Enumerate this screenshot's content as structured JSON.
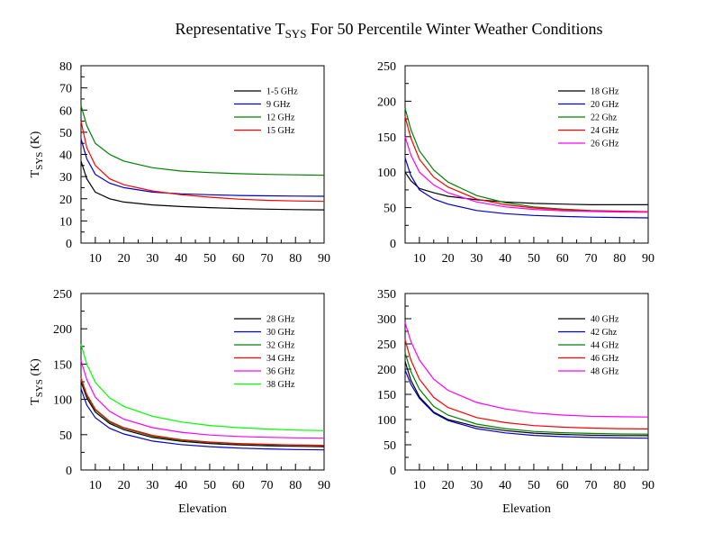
{
  "title": {
    "pre": "Representative T",
    "sub": "SYS",
    "post": " For 50 Percentile Winter Weather Conditions"
  },
  "chart_data": [
    {
      "type": "line",
      "ylim": [
        0,
        80
      ],
      "xlim": [
        5,
        90
      ],
      "yticks": [
        0,
        10,
        20,
        30,
        40,
        50,
        60,
        70,
        80
      ],
      "xticks": [
        10,
        20,
        30,
        40,
        50,
        60,
        70,
        80,
        90
      ],
      "ylabel_main": "T",
      "ylabel_sub": "SYS",
      "ylabel_post": " (K)",
      "xlabel": "",
      "legend_position": "top-right",
      "series": [
        {
          "name": "1-5 GHz",
          "color": "#000000",
          "x": [
            5,
            7,
            10,
            15,
            20,
            30,
            40,
            50,
            60,
            70,
            80,
            90
          ],
          "values": [
            37,
            29,
            23,
            20,
            18.5,
            17.2,
            16.5,
            16.0,
            15.6,
            15.3,
            15.1,
            15.0
          ]
        },
        {
          "name": "9 GHz",
          "color": "#0000cc",
          "x": [
            5,
            7,
            10,
            15,
            20,
            30,
            40,
            50,
            60,
            70,
            80,
            90
          ],
          "values": [
            47,
            38,
            31,
            27,
            25,
            23,
            22.2,
            21.8,
            21.5,
            21.3,
            21.2,
            21.1
          ]
        },
        {
          "name": "12 GHz",
          "color": "#008000",
          "x": [
            5,
            7,
            10,
            15,
            20,
            30,
            40,
            50,
            60,
            70,
            80,
            90
          ],
          "values": [
            62,
            53,
            45,
            40,
            37,
            34,
            32.5,
            31.8,
            31.3,
            31.0,
            30.8,
            30.6
          ]
        },
        {
          "name": "15 GHz",
          "color": "#ff0000",
          "x": [
            5,
            7,
            10,
            15,
            20,
            30,
            40,
            50,
            60,
            70,
            80,
            90
          ],
          "values": [
            55,
            43,
            35,
            29,
            26.3,
            23.5,
            21.8,
            20.7,
            19.8,
            19.3,
            19.0,
            18.8
          ]
        }
      ]
    },
    {
      "type": "line",
      "ylim": [
        0,
        250
      ],
      "xlim": [
        5,
        90
      ],
      "yticks": [
        0,
        50,
        100,
        150,
        200,
        250
      ],
      "xticks": [
        10,
        20,
        30,
        40,
        50,
        60,
        70,
        80,
        90
      ],
      "ylabel_main": "",
      "ylabel_sub": "",
      "ylabel_post": "",
      "xlabel": "",
      "legend_position": "top-right",
      "series": [
        {
          "name": "18 GHz",
          "color": "#000000",
          "x": [
            5,
            7,
            10,
            15,
            20,
            30,
            40,
            50,
            60,
            70,
            80,
            90
          ],
          "values": [
            100,
            88,
            77,
            71,
            66,
            61,
            58,
            56,
            55,
            54,
            54,
            54
          ]
        },
        {
          "name": "20 GHz",
          "color": "#0000cc",
          "x": [
            5,
            7,
            10,
            15,
            20,
            30,
            40,
            50,
            60,
            70,
            80,
            90
          ],
          "values": [
            120,
            95,
            75,
            62,
            55,
            46,
            41.5,
            39,
            37.5,
            36.5,
            36,
            35.5
          ]
        },
        {
          "name": "22 Ghz",
          "color": "#008000",
          "x": [
            5,
            7,
            10,
            15,
            20,
            30,
            40,
            50,
            60,
            70,
            80,
            90
          ],
          "values": [
            190,
            160,
            130,
            103,
            86,
            67,
            57,
            51,
            48,
            46,
            45,
            44
          ]
        },
        {
          "name": "24 GHz",
          "color": "#ff0000",
          "x": [
            5,
            7,
            10,
            15,
            20,
            30,
            40,
            50,
            60,
            70,
            80,
            90
          ],
          "values": [
            178,
            148,
            118,
            93,
            79,
            62,
            54,
            49.5,
            47,
            45.5,
            44.8,
            44.3
          ]
        },
        {
          "name": "26 GHz",
          "color": "#ff00ff",
          "x": [
            5,
            7,
            10,
            15,
            20,
            30,
            40,
            50,
            60,
            70,
            80,
            90
          ],
          "values": [
            150,
            124,
            100,
            82,
            71,
            58,
            51,
            47.5,
            45.5,
            44.5,
            43.8,
            43.4
          ]
        }
      ]
    },
    {
      "type": "line",
      "ylim": [
        0,
        250
      ],
      "xlim": [
        5,
        90
      ],
      "yticks": [
        0,
        50,
        100,
        150,
        200,
        250
      ],
      "xticks": [
        10,
        20,
        30,
        40,
        50,
        60,
        70,
        80,
        90
      ],
      "ylabel_main": "T",
      "ylabel_sub": "SYS",
      "ylabel_post": " (K)",
      "xlabel": "Elevation",
      "legend_position": "top-right",
      "series": [
        {
          "name": "28 GHz",
          "color": "#000000",
          "x": [
            5,
            7,
            10,
            15,
            20,
            30,
            40,
            50,
            60,
            70,
            80,
            90
          ],
          "values": [
            125,
            102,
            82,
            66,
            57,
            46,
            40.5,
            37.5,
            35.5,
            34.3,
            33.5,
            33.0
          ]
        },
        {
          "name": "30 GHz",
          "color": "#0000cc",
          "x": [
            5,
            7,
            10,
            15,
            20,
            30,
            40,
            50,
            60,
            70,
            80,
            90
          ],
          "values": [
            115,
            92,
            74,
            59,
            51,
            41,
            36,
            33,
            31,
            29.8,
            29,
            28.5
          ]
        },
        {
          "name": "32 GHz",
          "color": "#008000",
          "x": [
            5,
            7,
            10,
            15,
            20,
            30,
            40,
            50,
            60,
            70,
            80,
            90
          ],
          "values": [
            128,
            105,
            85,
            68,
            59,
            48,
            42,
            39,
            37,
            36,
            35.3,
            35.0
          ]
        },
        {
          "name": "34 GHz",
          "color": "#ff0000",
          "x": [
            5,
            7,
            10,
            15,
            20,
            30,
            40,
            50,
            60,
            70,
            80,
            90
          ],
          "values": [
            130,
            107,
            86,
            69,
            60,
            49,
            43,
            39.5,
            37.5,
            36.3,
            35.5,
            35.0
          ]
        },
        {
          "name": "36 GHz",
          "color": "#ff00ff",
          "x": [
            5,
            7,
            10,
            15,
            20,
            30,
            40,
            50,
            60,
            70,
            80,
            90
          ],
          "values": [
            155,
            128,
            103,
            83,
            72,
            60,
            53.5,
            49.5,
            47.5,
            46.3,
            45.5,
            45.0
          ]
        },
        {
          "name": "38 GHz",
          "color": "#00ff00",
          "x": [
            5,
            7,
            10,
            15,
            20,
            30,
            40,
            50,
            60,
            70,
            80,
            90
          ],
          "values": [
            178,
            150,
            124,
            102,
            90,
            76,
            68,
            63,
            60,
            58,
            56.5,
            55.8
          ]
        }
      ]
    },
    {
      "type": "line",
      "ylim": [
        0,
        350
      ],
      "xlim": [
        5,
        90
      ],
      "yticks": [
        0,
        50,
        100,
        150,
        200,
        250,
        300,
        350
      ],
      "xticks": [
        10,
        20,
        30,
        40,
        50,
        60,
        70,
        80,
        90
      ],
      "ylabel_main": "",
      "ylabel_sub": "",
      "ylabel_post": "",
      "xlabel": "Elevation",
      "legend_position": "top-right",
      "series": [
        {
          "name": "40 GHz",
          "color": "#000000",
          "x": [
            5,
            7,
            10,
            15,
            20,
            30,
            40,
            50,
            60,
            70,
            80,
            90
          ],
          "values": [
            215,
            178,
            145,
            115,
            100,
            86,
            78,
            73,
            70.5,
            69,
            68.3,
            68.0
          ]
        },
        {
          "name": "42 Ghz",
          "color": "#0000cc",
          "x": [
            5,
            7,
            10,
            15,
            20,
            30,
            40,
            50,
            60,
            70,
            80,
            90
          ],
          "values": [
            198,
            170,
            142,
            113,
            98,
            82,
            73.5,
            68.5,
            66,
            64.5,
            63.5,
            63.0
          ]
        },
        {
          "name": "44 GHz",
          "color": "#008000",
          "x": [
            5,
            7,
            10,
            15,
            20,
            30,
            40,
            50,
            60,
            70,
            80,
            90
          ],
          "values": [
            232,
            195,
            160,
            126,
            109,
            91,
            82,
            76.5,
            74,
            72.5,
            71.5,
            71.0
          ]
        },
        {
          "name": "46 GHz",
          "color": "#ff0000",
          "x": [
            5,
            7,
            10,
            15,
            20,
            30,
            40,
            50,
            60,
            70,
            80,
            90
          ],
          "values": [
            258,
            218,
            180,
            144,
            124,
            104,
            94,
            88,
            85,
            83,
            82,
            81.5
          ]
        },
        {
          "name": "48 GHz",
          "color": "#ff00ff",
          "x": [
            5,
            7,
            10,
            15,
            20,
            30,
            40,
            50,
            60,
            70,
            80,
            90
          ],
          "values": [
            292,
            255,
            218,
            180,
            158,
            134,
            121,
            113,
            109,
            106.5,
            105.5,
            105.0
          ]
        }
      ]
    }
  ]
}
